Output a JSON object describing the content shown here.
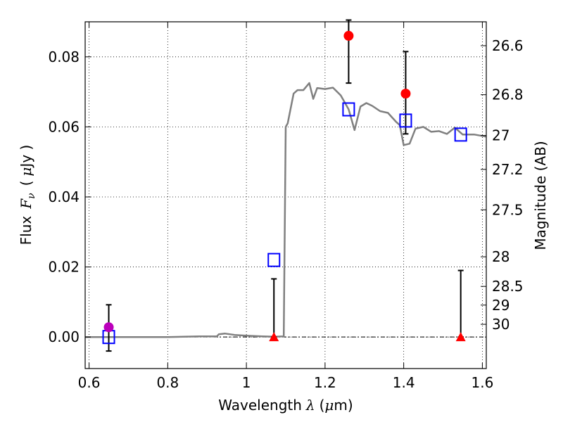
{
  "chart_data": {
    "type": "scatter",
    "xlabel_text": "Wavelength",
    "xlabel_symbol": "λ",
    "xlabel_unit_open": "(",
    "xlabel_unit_mu": "μ",
    "xlabel_unit_rest": "m)",
    "ylabel_text": "Flux",
    "ylabel_symbol": "F",
    "ylabel_sub": "ν",
    "ylabel_unit_open": "(",
    "ylabel_unit_mu": "μ",
    "ylabel_unit_rest": "Jy )",
    "y2label": "Magnitude (AB)",
    "xlim": [
      0.59,
      1.61
    ],
    "ylim": [
      -0.009,
      0.09
    ],
    "grid": true,
    "x_ticks": [
      0.6,
      0.8,
      1.0,
      1.2,
      1.4,
      1.6
    ],
    "x_tick_labels": [
      "0.6",
      "0.8",
      "1",
      "1.2",
      "1.4",
      "1.6"
    ],
    "y_ticks": [
      0.0,
      0.02,
      0.04,
      0.06,
      0.08
    ],
    "y_tick_labels": [
      "0.00",
      "0.02",
      "0.04",
      "0.06",
      "0.08"
    ],
    "mag_ticks": [
      26.6,
      26.8,
      27,
      27.2,
      27.5,
      28,
      28.5,
      29,
      30
    ],
    "mag_tick_labels": [
      "26.6",
      "26.8",
      "27",
      "27.2",
      "27.5",
      "28",
      "28.5",
      "29",
      "30"
    ],
    "model_sed": {
      "color": "#808080",
      "x": [
        0.59,
        0.7,
        0.8,
        0.88,
        0.925,
        0.93,
        0.945,
        0.97,
        1.0,
        1.04,
        1.07,
        1.095,
        1.1,
        1.105,
        1.12,
        1.13,
        1.145,
        1.16,
        1.17,
        1.18,
        1.2,
        1.22,
        1.24,
        1.26,
        1.275,
        1.29,
        1.305,
        1.32,
        1.34,
        1.36,
        1.38,
        1.39,
        1.4,
        1.415,
        1.43,
        1.45,
        1.47,
        1.49,
        1.51,
        1.53,
        1.55,
        1.58,
        1.61
      ],
      "y": [
        0.0,
        0.0,
        0.0,
        0.0002,
        0.0002,
        0.0008,
        0.001,
        0.0006,
        0.0004,
        0.0002,
        0.0001,
        0.0002,
        0.06,
        0.061,
        0.0695,
        0.0705,
        0.0705,
        0.0725,
        0.068,
        0.0711,
        0.0708,
        0.0712,
        0.069,
        0.065,
        0.0591,
        0.0658,
        0.0668,
        0.066,
        0.0645,
        0.064,
        0.0615,
        0.0605,
        0.0548,
        0.0552,
        0.0595,
        0.06,
        0.0586,
        0.0588,
        0.058,
        0.0598,
        0.0578,
        0.0578,
        0.0572
      ]
    },
    "model_bands": {
      "color": "#0000ff",
      "x": [
        0.65,
        1.07,
        1.26,
        1.405,
        1.545
      ],
      "y": [
        0.0,
        0.022,
        0.065,
        0.0618,
        0.0578
      ]
    },
    "detections": {
      "color": "#ff0000",
      "x": [
        1.26,
        1.405
      ],
      "y": [
        0.086,
        0.0695
      ],
      "err_low": [
        0.0725,
        0.058
      ],
      "err_high": [
        0.0905,
        0.0815
      ]
    },
    "upper_limits": {
      "color": "#ff0000",
      "x": [
        1.07,
        1.545
      ],
      "y": [
        0.0,
        0.0
      ],
      "err_high": [
        0.0166,
        0.019
      ]
    },
    "optical_point": {
      "color": "#bb00bb",
      "x": [
        0.65
      ],
      "y": [
        0.0028
      ],
      "err_low": [
        -0.004
      ],
      "err_high": [
        0.0092
      ]
    }
  }
}
